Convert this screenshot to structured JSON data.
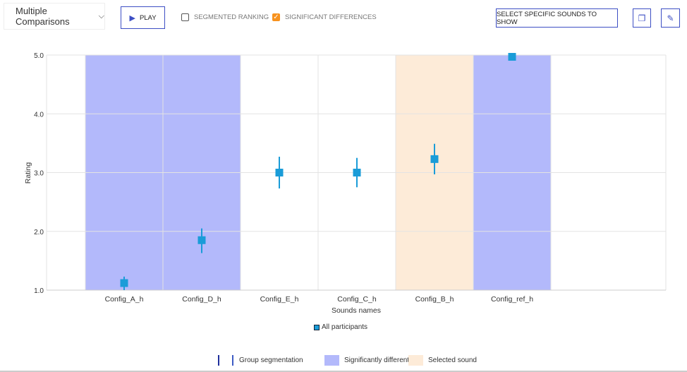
{
  "toolbar": {
    "view_select": "Multiple Comparisons",
    "play": "PLAY",
    "segmented_ranking": {
      "label": "SEGMENTED RANKING",
      "checked": false
    },
    "significant_differences": {
      "label": "SIGNIFICANT DIFFERENCES",
      "checked": true
    },
    "select_sounds": "SELECT SPECIFIC SOUNDS TO SHOW",
    "copy_icon": "copy-icon",
    "edit_icon": "pencil-icon"
  },
  "chart_data": {
    "type": "scatter",
    "xlabel": "Sounds names",
    "ylabel": "Rating",
    "ylim": [
      1,
      5
    ],
    "yticks": [
      "1.0",
      "2.0",
      "3.0",
      "4.0",
      "5.0"
    ],
    "grid": true,
    "categories": [
      "Config_A_h",
      "Config_D_h",
      "Config_E_h",
      "Config_C_h",
      "Config_B_h",
      "Config_ref_h"
    ],
    "series": [
      {
        "name": "All participants",
        "values": [
          1.12,
          1.85,
          3.0,
          3.0,
          3.23,
          4.97
        ],
        "err_low": [
          1.0,
          1.63,
          2.73,
          2.75,
          2.97,
          4.92
        ],
        "err_high": [
          1.23,
          2.05,
          3.27,
          3.25,
          3.49,
          5.0
        ],
        "color": "#1a9cd8"
      }
    ],
    "significantly_different": [
      "Config_A_h",
      "Config_D_h",
      "Config_ref_h"
    ],
    "selected": [
      "Config_B_h"
    ],
    "colors": {
      "significant": "#b3b9fb",
      "selected": "#fdebd8",
      "segmentation": "#1f2f9c"
    }
  },
  "legend": {
    "group_segmentation": "Group segmentation",
    "significantly_different": "Significantly different",
    "selected_sound": "Selected sound"
  }
}
